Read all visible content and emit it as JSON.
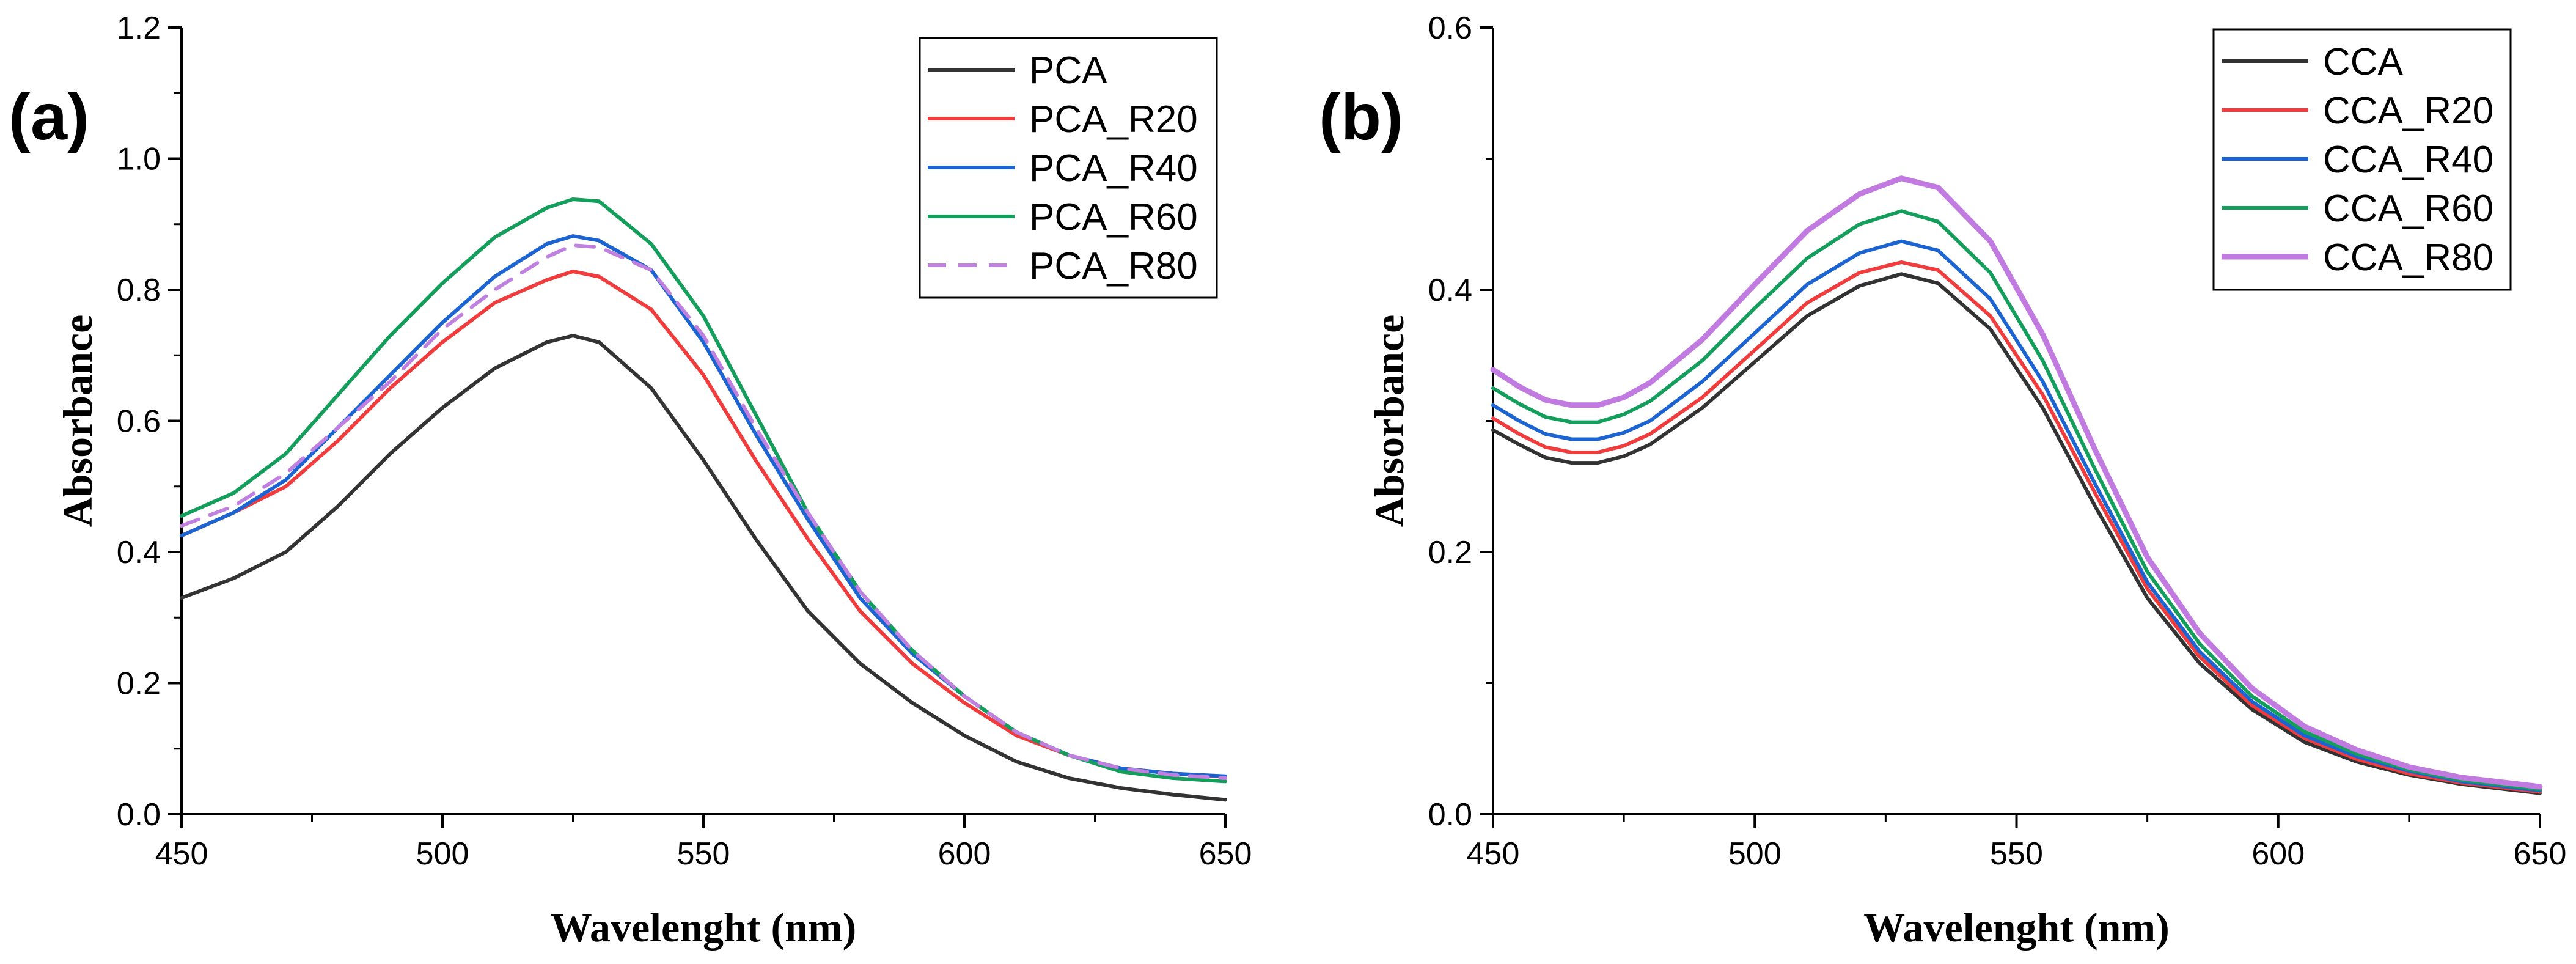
{
  "chart_data": [
    {
      "type": "line",
      "panel_label": "(a)",
      "xlabel": "Wavelenght (nm)",
      "ylabel": "Absorbance",
      "xlim": [
        450,
        650
      ],
      "ylim": [
        0.0,
        1.2
      ],
      "xticks": [
        450,
        500,
        550,
        600,
        650
      ],
      "xtick_labels": [
        "450",
        "500",
        "550",
        "600",
        "650"
      ],
      "yticks": [
        0.0,
        0.2,
        0.4,
        0.6,
        0.8,
        1.0,
        1.2
      ],
      "ytick_labels": [
        "0.0",
        "0.2",
        "0.4",
        "0.6",
        "0.8",
        "1.0",
        "1.2"
      ],
      "legend_position": "top-right",
      "x": [
        450,
        460,
        470,
        480,
        490,
        500,
        510,
        520,
        525,
        530,
        540,
        550,
        560,
        570,
        580,
        590,
        600,
        610,
        620,
        630,
        640,
        650
      ],
      "series": [
        {
          "name": "PCA",
          "color": "#333333",
          "dash": "solid",
          "values": [
            0.33,
            0.36,
            0.4,
            0.47,
            0.55,
            0.62,
            0.68,
            0.72,
            0.73,
            0.72,
            0.65,
            0.54,
            0.42,
            0.31,
            0.23,
            0.17,
            0.12,
            0.08,
            0.055,
            0.04,
            0.03,
            0.022
          ]
        },
        {
          "name": "PCA_R20",
          "color": "#f03c3c",
          "dash": "solid",
          "values": [
            0.425,
            0.46,
            0.5,
            0.57,
            0.65,
            0.72,
            0.78,
            0.815,
            0.828,
            0.82,
            0.77,
            0.67,
            0.54,
            0.42,
            0.31,
            0.23,
            0.17,
            0.12,
            0.09,
            0.07,
            0.062,
            0.057
          ]
        },
        {
          "name": "PCA_R40",
          "color": "#1c64d2",
          "dash": "solid",
          "values": [
            0.425,
            0.46,
            0.51,
            0.59,
            0.67,
            0.75,
            0.82,
            0.87,
            0.882,
            0.875,
            0.83,
            0.72,
            0.58,
            0.45,
            0.33,
            0.245,
            0.18,
            0.125,
            0.09,
            0.07,
            0.062,
            0.058
          ]
        },
        {
          "name": "PCA_R60",
          "color": "#149e5c",
          "dash": "solid",
          "values": [
            0.455,
            0.49,
            0.55,
            0.64,
            0.73,
            0.81,
            0.88,
            0.925,
            0.938,
            0.935,
            0.87,
            0.76,
            0.61,
            0.46,
            0.34,
            0.25,
            0.18,
            0.125,
            0.09,
            0.065,
            0.055,
            0.05
          ]
        },
        {
          "name": "PCA_R80",
          "color": "#c080e0",
          "dash": "dashed",
          "values": [
            0.44,
            0.47,
            0.52,
            0.59,
            0.66,
            0.74,
            0.8,
            0.85,
            0.868,
            0.865,
            0.83,
            0.73,
            0.59,
            0.46,
            0.34,
            0.25,
            0.18,
            0.125,
            0.09,
            0.07,
            0.06,
            0.055
          ]
        }
      ]
    },
    {
      "type": "line",
      "panel_label": "(b)",
      "xlabel": "Wavelenght (nm)",
      "ylabel": "Absorbance",
      "xlim": [
        450,
        650
      ],
      "ylim": [
        0.0,
        0.6
      ],
      "xticks": [
        450,
        500,
        550,
        600,
        650
      ],
      "xtick_labels": [
        "450",
        "500",
        "550",
        "600",
        "650"
      ],
      "yticks": [
        0.0,
        0.2,
        0.4,
        0.6
      ],
      "ytick_labels": [
        "0.0",
        "0.2",
        "0.4",
        "0.6"
      ],
      "legend_position": "top-right",
      "x": [
        450,
        455,
        460,
        465,
        470,
        475,
        480,
        490,
        500,
        510,
        520,
        528,
        535,
        545,
        555,
        565,
        575,
        585,
        595,
        605,
        615,
        625,
        635,
        650
      ],
      "series": [
        {
          "name": "CCA",
          "color": "#333333",
          "dash": "solid",
          "values": [
            0.293,
            0.282,
            0.272,
            0.268,
            0.268,
            0.273,
            0.282,
            0.31,
            0.345,
            0.38,
            0.403,
            0.412,
            0.405,
            0.37,
            0.31,
            0.235,
            0.165,
            0.115,
            0.08,
            0.055,
            0.04,
            0.03,
            0.023,
            0.016
          ]
        },
        {
          "name": "CCA_R20",
          "color": "#f03c3c",
          "dash": "solid",
          "values": [
            0.302,
            0.29,
            0.28,
            0.276,
            0.276,
            0.281,
            0.29,
            0.318,
            0.354,
            0.39,
            0.413,
            0.421,
            0.415,
            0.38,
            0.32,
            0.245,
            0.172,
            0.12,
            0.083,
            0.058,
            0.042,
            0.031,
            0.024,
            0.017
          ]
        },
        {
          "name": "CCA_R40",
          "color": "#1c64d2",
          "dash": "solid",
          "values": [
            0.312,
            0.3,
            0.29,
            0.286,
            0.286,
            0.291,
            0.3,
            0.33,
            0.367,
            0.404,
            0.428,
            0.437,
            0.43,
            0.393,
            0.33,
            0.252,
            0.177,
            0.124,
            0.086,
            0.06,
            0.044,
            0.033,
            0.025,
            0.018
          ]
        },
        {
          "name": "CCA_R60",
          "color": "#149e5c",
          "dash": "solid",
          "values": [
            0.325,
            0.313,
            0.303,
            0.299,
            0.299,
            0.305,
            0.315,
            0.346,
            0.386,
            0.424,
            0.45,
            0.46,
            0.452,
            0.413,
            0.346,
            0.263,
            0.185,
            0.13,
            0.09,
            0.063,
            0.046,
            0.034,
            0.026,
            0.019
          ]
        },
        {
          "name": "CCA_R80",
          "color": "#c07ae0",
          "dash": "solid",
          "values": [
            0.339,
            0.326,
            0.316,
            0.312,
            0.312,
            0.318,
            0.329,
            0.362,
            0.404,
            0.445,
            0.473,
            0.485,
            0.478,
            0.437,
            0.366,
            0.278,
            0.196,
            0.138,
            0.096,
            0.067,
            0.049,
            0.036,
            0.028,
            0.021
          ]
        }
      ]
    }
  ]
}
